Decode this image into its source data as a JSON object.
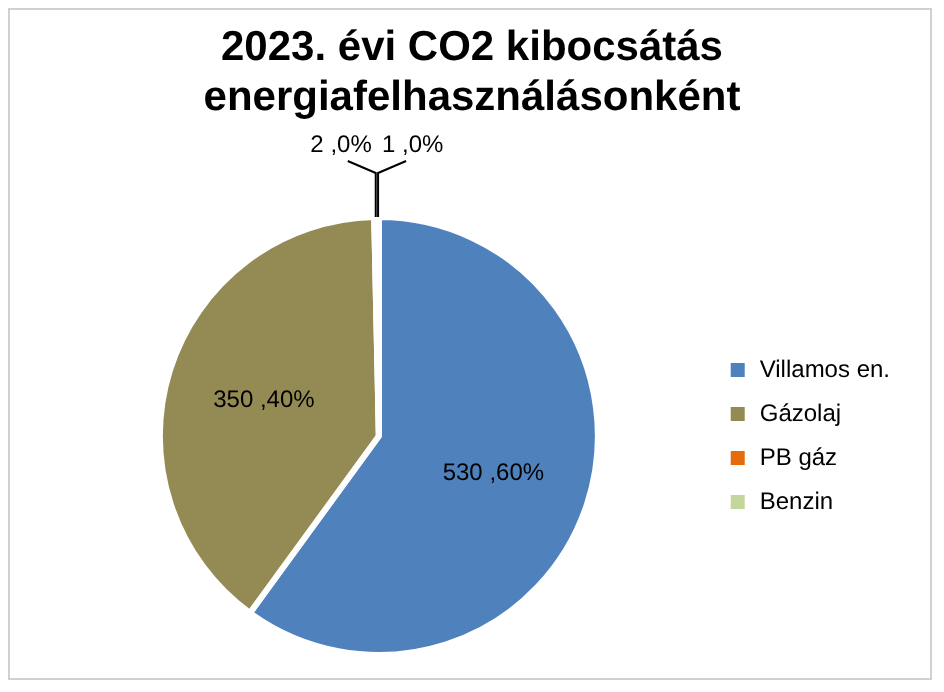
{
  "chart_data": {
    "type": "pie",
    "title": "2023. évi CO2 kibocsátás energiafelhasználásonként",
    "categories": [
      "Villamos en.",
      "Gázolaj",
      "PB gáz",
      "Benzin"
    ],
    "values": [
      530,
      350,
      2,
      1
    ],
    "colors": [
      "#4f81bd",
      "#948a54",
      "#e46c0a",
      "#c3d69b"
    ],
    "value_labels": [
      "530 ,60%",
      "350 ,40%",
      "2 ,0%",
      "1 ,0%"
    ],
    "legend": "right"
  }
}
